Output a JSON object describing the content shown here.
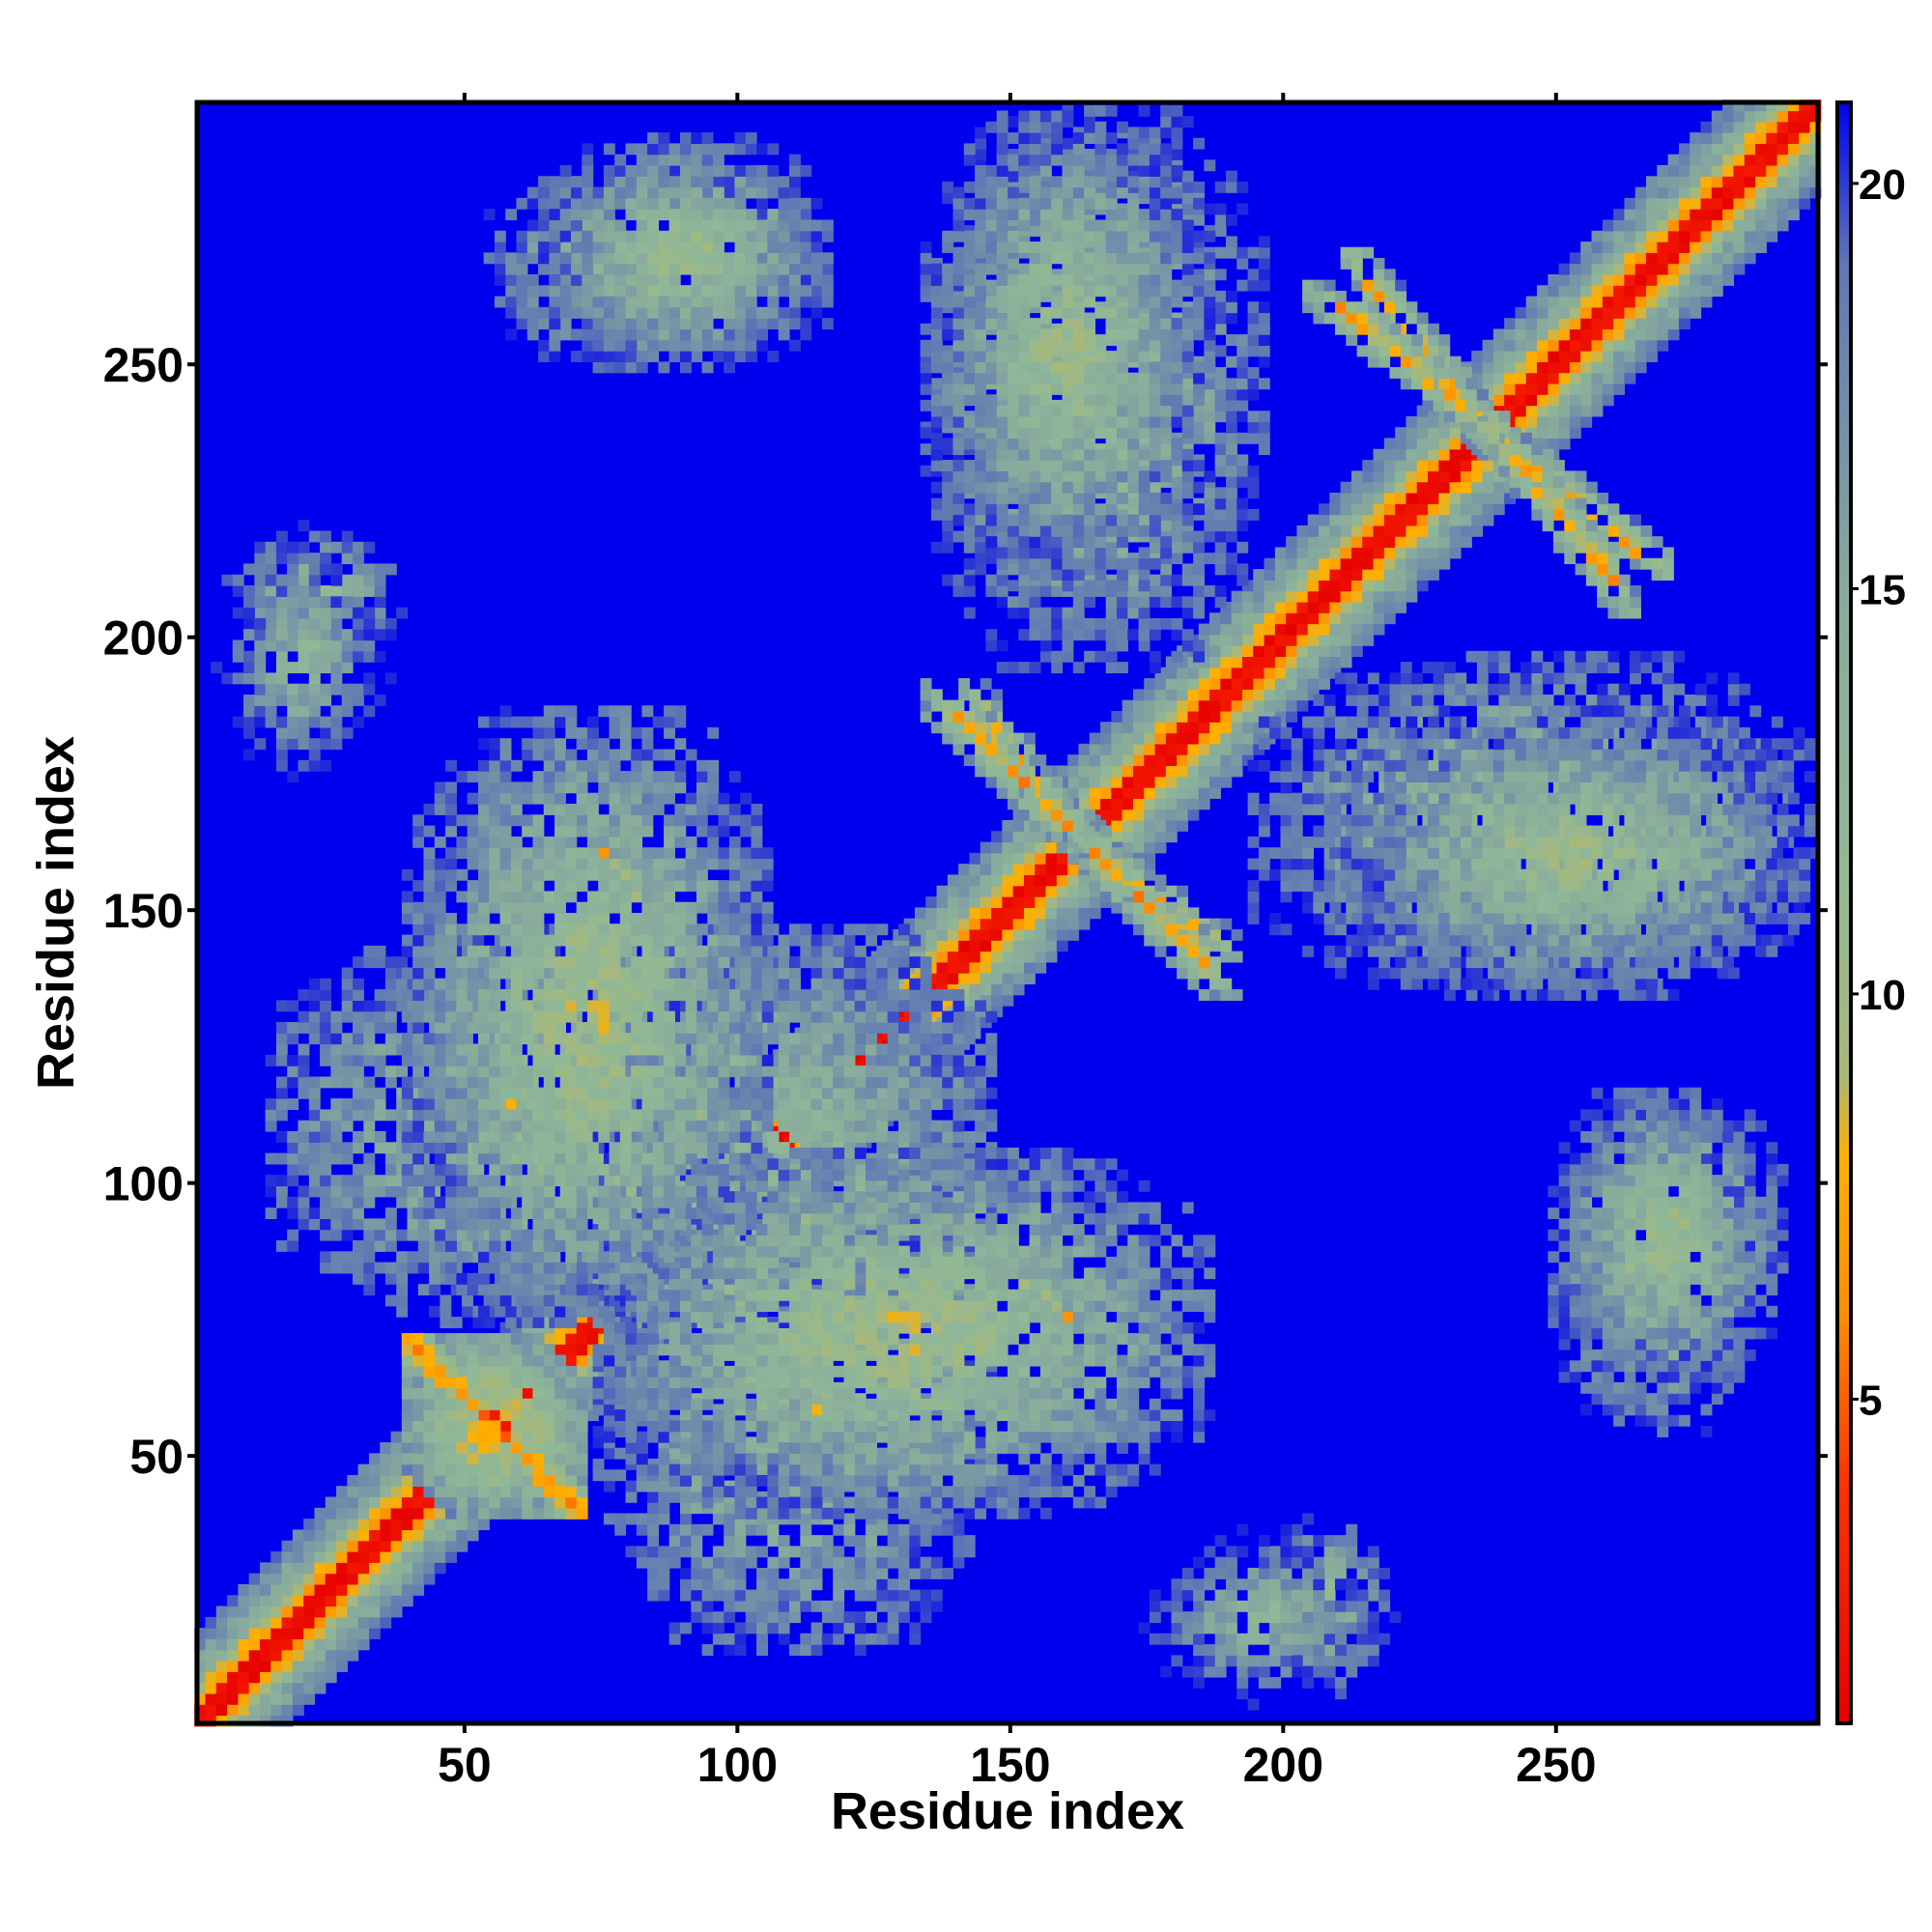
{
  "chart_data": {
    "type": "heatmap",
    "title": "",
    "xlabel": "Residue index",
    "ylabel": "Residue index",
    "x_range": [
      1,
      298
    ],
    "y_range": [
      1,
      298
    ],
    "x_ticks": [
      50,
      100,
      150,
      200,
      250
    ],
    "y_ticks": [
      50,
      100,
      150,
      200,
      250
    ],
    "colorbar": {
      "ticks": [
        5,
        10,
        15,
        20
      ],
      "range": [
        1,
        21
      ],
      "colors": [
        {
          "value": 1,
          "color": "#e60000"
        },
        {
          "value": 4,
          "color": "#ff3300"
        },
        {
          "value": 6,
          "color": "#ff8c00"
        },
        {
          "value": 8,
          "color": "#ffb000"
        },
        {
          "value": 9,
          "color": "#a8b87a"
        },
        {
          "value": 12,
          "color": "#8fb898"
        },
        {
          "value": 15,
          "color": "#88aa9c"
        },
        {
          "value": 19,
          "color": "#5e78b4"
        },
        {
          "value": 21,
          "color": "#0000ee"
        }
      ]
    },
    "background_color": "#0000ee",
    "value_type": "inter-residue distance (symmetric matrix, diagonal = 0)",
    "contact_regions": [
      {
        "x": [
          45,
          65
        ],
        "y": [
          45,
          65
        ],
        "shape": "X-crossing",
        "min_value": 4
      },
      {
        "x": [
          75,
          88
        ],
        "y": [
          140,
          160
        ],
        "shape": "antidiagonal strand",
        "min_value": 5
      },
      {
        "x": [
          100,
          120
        ],
        "y": [
          50,
          75
        ],
        "shape": "antidiagonal strand",
        "min_value": 5
      },
      {
        "x": [
          145,
          160
        ],
        "y": [
          165,
          185
        ],
        "shape": "antidiagonal strand",
        "min_value": 5
      },
      {
        "x": [
          165,
          185
        ],
        "y": [
          140,
          160
        ],
        "shape": "antidiagonal strand",
        "min_value": 5
      },
      {
        "x": [
          215,
          235
        ],
        "y": [
          240,
          265
        ],
        "shape": "antidiagonal strand",
        "min_value": 5
      },
      {
        "x": [
          240,
          260
        ],
        "y": [
          210,
          235
        ],
        "shape": "antidiagonal strand",
        "min_value": 5
      },
      {
        "x": [
          200,
          215
        ],
        "y": [
          10,
          35
        ],
        "shape": "patch",
        "min_value": 10
      },
      {
        "x": [
          255,
          280
        ],
        "y": [
          60,
          110
        ],
        "shape": "patch",
        "min_value": 8
      },
      {
        "x": [
          10,
          30
        ],
        "y": [
          180,
          210
        ],
        "shape": "patch",
        "min_value": 10
      },
      {
        "x": [
          70,
          110
        ],
        "y": [
          255,
          285
        ],
        "shape": "patch",
        "min_value": 8
      },
      {
        "x": [
          140,
          190
        ],
        "y": [
          200,
          290
        ],
        "shape": "patch",
        "min_value": 8
      },
      {
        "x": [
          215,
          290
        ],
        "y": [
          140,
          180
        ],
        "shape": "patch",
        "min_value": 8
      },
      {
        "x": [
          20,
          140
        ],
        "y": [
          80,
          140
        ],
        "shape": "patch",
        "min_value": 7
      },
      {
        "x": [
          80,
          180
        ],
        "y": [
          45,
          100
        ],
        "shape": "patch",
        "min_value": 7
      }
    ]
  }
}
